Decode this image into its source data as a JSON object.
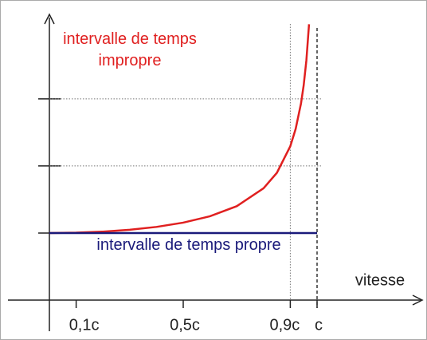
{
  "chart_data": {
    "type": "line",
    "x_label": "vitesse",
    "xlim": [
      0,
      1
    ],
    "ylim": [
      0,
      4.26
    ],
    "xticks": [
      {
        "value": 0.1,
        "label": "0,1c"
      },
      {
        "value": 0.5,
        "label": "0,5c"
      },
      {
        "value": 0.9,
        "label": "0,9c"
      },
      {
        "value": 1,
        "label": "c"
      }
    ],
    "yticks": [
      1,
      2,
      3
    ],
    "series": [
      {
        "name": "intervalle de temps impropre",
        "color": "#e02020",
        "x": [
          0,
          0.1,
          0.2,
          0.3,
          0.4,
          0.5,
          0.6,
          0.7,
          0.8,
          0.85,
          0.9,
          0.92,
          0.94,
          0.95,
          0.96,
          0.97
        ],
        "values": [
          1,
          1.005,
          1.021,
          1.048,
          1.091,
          1.155,
          1.25,
          1.4,
          1.667,
          1.898,
          2.294,
          2.552,
          2.931,
          3.203,
          3.571,
          4.113
        ]
      },
      {
        "name": "intervalle de temps propre",
        "color": "#1a1a7a",
        "x": [
          0,
          1
        ],
        "values": [
          1,
          1
        ]
      }
    ]
  }
}
